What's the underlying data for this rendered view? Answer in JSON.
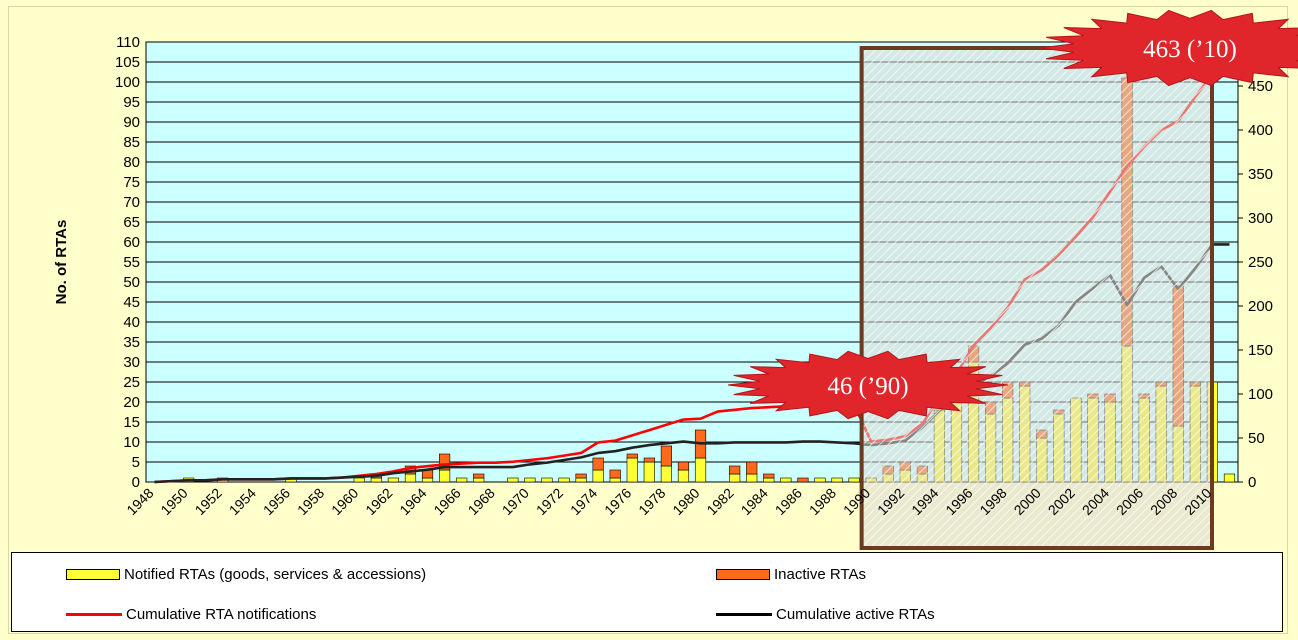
{
  "chart_data": {
    "type": "bar",
    "ylabel": "No. of RTAs",
    "ylim": [
      0,
      110
    ],
    "y2lim": [
      0,
      500
    ],
    "yticks": [
      "0",
      "5",
      "10",
      "15",
      "20",
      "25",
      "30",
      "35",
      "40",
      "45",
      "50",
      "55",
      "60",
      "65",
      "70",
      "75",
      "80",
      "85",
      "90",
      "95",
      "100",
      "105",
      "110"
    ],
    "y2ticks": [
      "0",
      "50",
      "100",
      "150",
      "200",
      "250",
      "300",
      "350",
      "400",
      "450"
    ],
    "x_ticklabels": [
      "1948",
      "1950",
      "1952",
      "1954",
      "1956",
      "1958",
      "1960",
      "1962",
      "1964",
      "1966",
      "1968",
      "1970",
      "1972",
      "1974",
      "1976",
      "1978",
      "1980",
      "1982",
      "1984",
      "1986",
      "1988",
      "1990",
      "1992",
      "1994",
      "1996",
      "1998",
      "2000",
      "2002",
      "2004",
      "2006",
      "2008",
      "2010"
    ],
    "grid": true,
    "legend_position": "bottom",
    "colors": {
      "plot_bg": "#ccffff",
      "notified": "#ffff33",
      "inactive": "#ff6a1a",
      "cumulative_notifications": "#ff0000",
      "cumulative_active": "#222222",
      "highlight_box": "#6b3a1f",
      "burst": "#e0262a"
    },
    "categories": [
      "1948",
      "1949",
      "1950",
      "1951",
      "1952",
      "1953",
      "1954",
      "1955",
      "1956",
      "1957",
      "1958",
      "1959",
      "1960",
      "1961",
      "1962",
      "1963",
      "1964",
      "1965",
      "1966",
      "1967",
      "1968",
      "1969",
      "1970",
      "1971",
      "1972",
      "1973",
      "1974",
      "1975",
      "1976",
      "1977",
      "1978",
      "1979",
      "1980",
      "1981",
      "1982",
      "1983",
      "1984",
      "1985",
      "1986",
      "1987",
      "1988",
      "1989",
      "1990",
      "1991",
      "1992",
      "1993",
      "1994",
      "1995",
      "1996",
      "1997",
      "1998",
      "1999",
      "2000",
      "2001",
      "2002",
      "2003",
      "2004",
      "2005",
      "2006",
      "2007",
      "2008",
      "2009",
      "2010",
      "2011"
    ],
    "series": [
      {
        "name": "Notified RTAs (goods, services & accessions)",
        "axis": "left",
        "kind": "bar",
        "values": [
          0,
          0,
          1,
          0,
          1,
          0,
          0,
          0,
          1,
          0,
          0,
          0,
          1,
          1,
          1,
          2,
          1,
          3,
          1,
          1,
          0,
          1,
          1,
          1,
          1,
          1,
          3,
          1,
          6,
          5,
          4,
          3,
          6,
          0,
          2,
          2,
          1,
          1,
          0,
          1,
          1,
          1,
          1,
          2,
          3,
          2,
          18,
          20,
          30,
          17,
          21,
          24,
          11,
          17,
          21,
          21,
          20,
          34,
          21,
          24,
          14,
          24,
          25,
          2
        ],
        "stacked_values": [
          0,
          0,
          1,
          0,
          1,
          0,
          0,
          0,
          1,
          0,
          0,
          0,
          1,
          1,
          2,
          4,
          2,
          7,
          1,
          2,
          0,
          0,
          2,
          1,
          3,
          5,
          1,
          12,
          2,
          3,
          6,
          6,
          6,
          0,
          2,
          4,
          0,
          1,
          0,
          1,
          1,
          0,
          1,
          2,
          0,
          3,
          18,
          21,
          34,
          21,
          25,
          24,
          13,
          18,
          21,
          22,
          22,
          101,
          22,
          25,
          49,
          25,
          25,
          2
        ]
      },
      {
        "name": "Inactive RTAs",
        "axis": "left",
        "kind": "bar",
        "values": [
          0,
          0,
          0,
          0,
          0,
          0,
          0,
          0,
          0,
          0,
          0,
          0,
          0,
          1,
          0,
          2,
          2,
          4,
          0,
          1,
          0,
          0,
          0,
          0,
          0,
          1,
          3,
          2,
          1,
          1,
          5,
          2,
          7,
          0,
          2,
          3,
          1,
          0,
          1,
          0,
          0,
          0,
          0,
          2,
          2,
          2,
          0,
          1,
          4,
          3,
          4,
          1,
          2,
          1,
          0,
          1,
          2,
          67,
          1,
          1,
          35,
          1,
          0,
          0
        ]
      },
      {
        "name": "Cumulative RTA notifications",
        "axis": "right",
        "kind": "line",
        "values": [
          0,
          1,
          2,
          2,
          3,
          3,
          3,
          3,
          4,
          4,
          4,
          5,
          7,
          9,
          12,
          16,
          18,
          20,
          21,
          22,
          22,
          23,
          25,
          27,
          30,
          33,
          45,
          47,
          53,
          59,
          65,
          71,
          72,
          80,
          82,
          84,
          85,
          86,
          86,
          87,
          87,
          88,
          46,
          48,
          52,
          66,
          96,
          123,
          155,
          175,
          198,
          230,
          241,
          258,
          279,
          301,
          330,
          359,
          381,
          400,
          410,
          438,
          463,
          463
        ]
      },
      {
        "name": "Cumulative active RTAs",
        "axis": "right",
        "kind": "line",
        "values": [
          0,
          1,
          2,
          2,
          3,
          3,
          3,
          3,
          4,
          4,
          4,
          5,
          6,
          7,
          10,
          12,
          14,
          17,
          17,
          17,
          17,
          17,
          20,
          22,
          25,
          28,
          33,
          35,
          39,
          42,
          44,
          46,
          44,
          44,
          45,
          45,
          45,
          45,
          46,
          46,
          45,
          44,
          42,
          44,
          47,
          62,
          81,
          95,
          110,
          120,
          135,
          156,
          163,
          178,
          205,
          220,
          235,
          201,
          232,
          245,
          219,
          243,
          270,
          270
        ]
      }
    ],
    "annotations": [
      {
        "label": "46 ('90)",
        "x": "1990",
        "y2": 46
      },
      {
        "label": "463 ('10)",
        "x": "2010",
        "y2": 463
      }
    ],
    "highlight_range": [
      "1990",
      "2011"
    ]
  },
  "annotations_text": {
    "label_1990": "46 (’90)",
    "label_2010": "463 (’10)"
  }
}
